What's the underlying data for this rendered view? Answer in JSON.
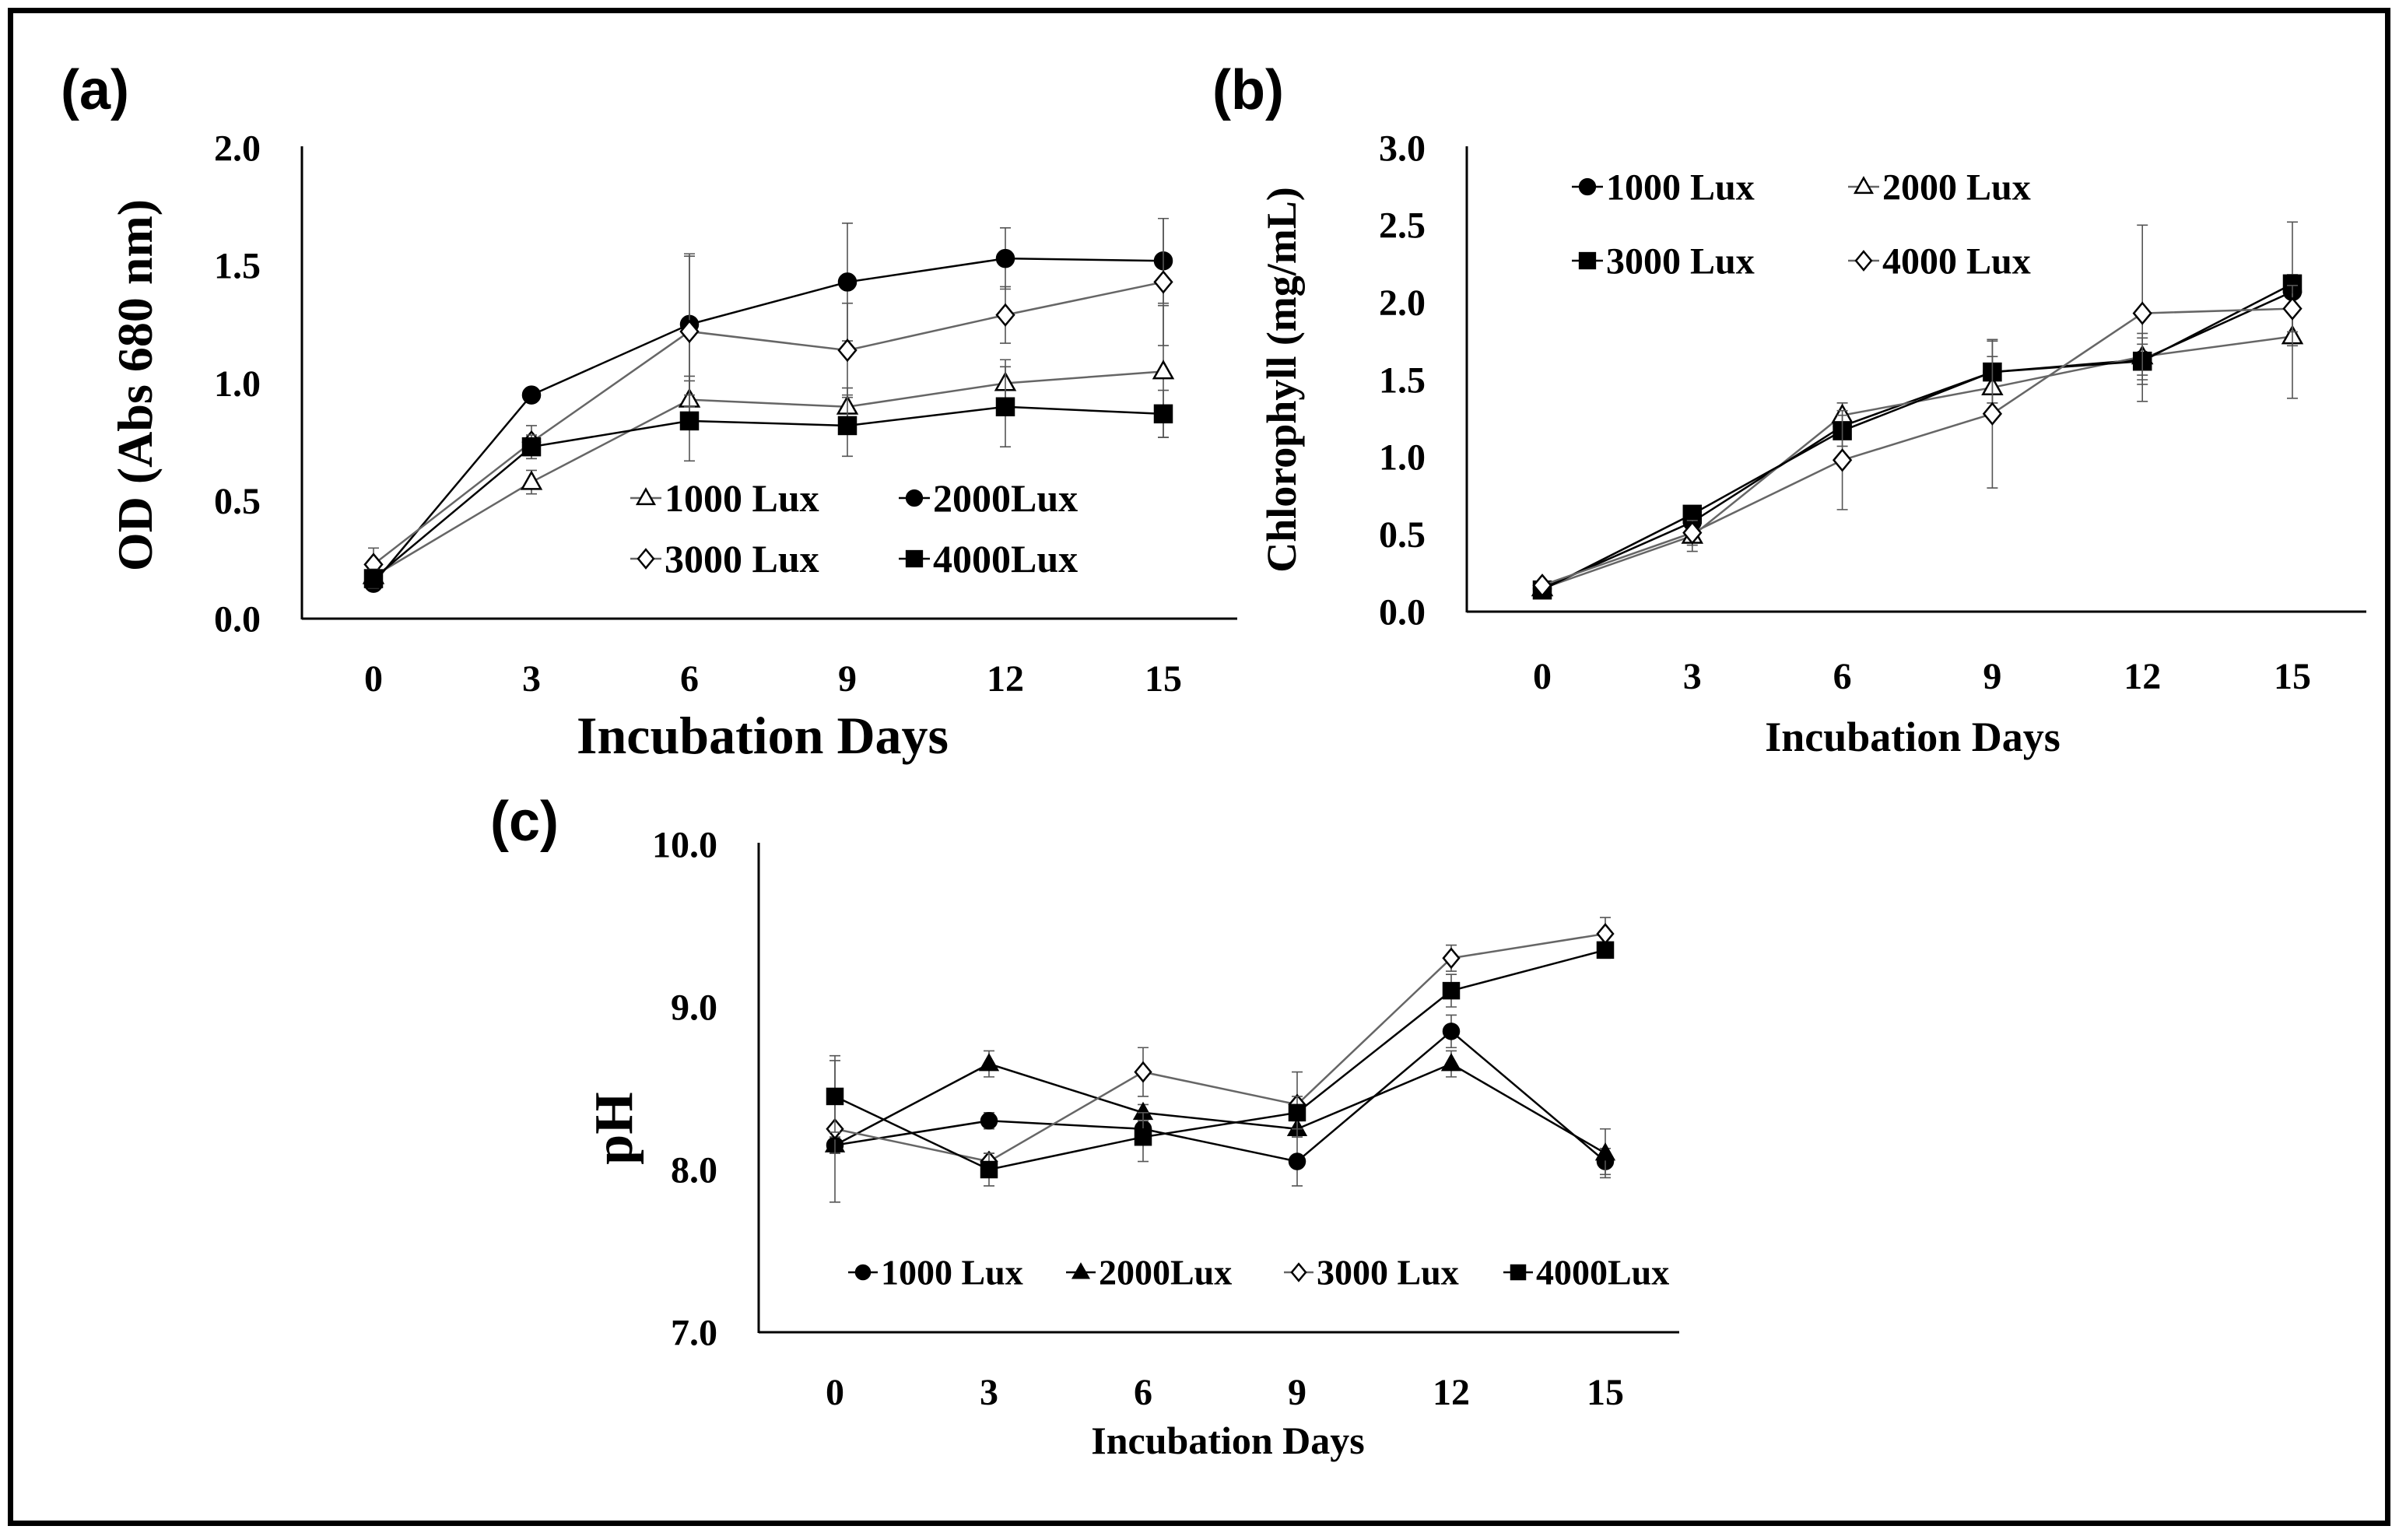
{
  "chart_data": [
    {
      "type": "line",
      "panel_label": "(a)",
      "title": "",
      "xlabel": "Incubation Days",
      "ylabel": "OD (Abs 680 nm)",
      "x": [
        0,
        3,
        6,
        9,
        12,
        15
      ],
      "x_tick_labels": [
        "0",
        "3",
        "6",
        "9",
        "12",
        "15"
      ],
      "ylim": [
        0,
        2
      ],
      "y_ticks": [
        0,
        0.5,
        1,
        1.5,
        2
      ],
      "y_tick_labels": [
        "0.0",
        "0.5",
        "1.0",
        "1.5",
        "2.0"
      ],
      "legend_position": "center-right",
      "series": [
        {
          "name": "1000 Lux",
          "marker": "triangle-open",
          "values": [
            0.18,
            0.58,
            0.93,
            0.9,
            1.0,
            1.05
          ],
          "errors": [
            0.05,
            0.05,
            0.1,
            0.08,
            0.1,
            0.28
          ]
        },
        {
          "name": "2000Lux",
          "marker": "circle-filled",
          "values": [
            0.15,
            0.95,
            1.25,
            1.43,
            1.53,
            1.52
          ],
          "errors": [
            0.03,
            0.03,
            0.3,
            0.25,
            0.13,
            0.18
          ]
        },
        {
          "name": "3000 Lux",
          "marker": "diamond-open",
          "values": [
            0.23,
            0.75,
            1.22,
            1.14,
            1.29,
            1.43
          ],
          "errors": [
            0.07,
            0.07,
            0.32,
            0.2,
            0.12,
            0.27
          ]
        },
        {
          "name": "4000Lux",
          "marker": "square-filled",
          "values": [
            0.17,
            0.73,
            0.84,
            0.82,
            0.9,
            0.87
          ],
          "errors": [
            0.04,
            0.05,
            0.17,
            0.13,
            0.17,
            0.1
          ]
        }
      ]
    },
    {
      "type": "line",
      "panel_label": "(b)",
      "title": "",
      "xlabel": "Incubation Days",
      "ylabel": "Chlorophyll  (mg/mL)",
      "x": [
        0,
        3,
        6,
        9,
        12,
        15
      ],
      "x_tick_labels": [
        "0",
        "3",
        "6",
        "9",
        "12",
        "15"
      ],
      "ylim": [
        0,
        3
      ],
      "y_ticks": [
        0,
        0.5,
        1,
        1.5,
        2,
        2.5,
        3
      ],
      "y_tick_labels": [
        "0.0",
        "0.5",
        "1.0",
        "1.5",
        "2.0",
        "2.5",
        "3.0"
      ],
      "legend_position": "top-left",
      "series": [
        {
          "name": "1000 Lux",
          "marker": "circle-filled",
          "values": [
            0.15,
            0.58,
            1.2,
            1.55,
            1.63,
            2.07
          ],
          "errors": [
            0.03,
            0.05,
            0.08,
            0.1,
            0.1,
            0.1
          ]
        },
        {
          "name": "2000 Lux",
          "marker": "triangle-open",
          "values": [
            0.15,
            0.49,
            1.27,
            1.45,
            1.65,
            1.78
          ],
          "errors": [
            0.03,
            0.1,
            0.08,
            0.1,
            0.15,
            0.4
          ]
        },
        {
          "name": "3000 Lux",
          "marker": "square-filled",
          "values": [
            0.14,
            0.63,
            1.17,
            1.55,
            1.62,
            2.12
          ],
          "errors": [
            0.03,
            0.05,
            0.1,
            0.2,
            0.15,
            0.4
          ]
        },
        {
          "name": "4000 Lux",
          "marker": "diamond-open",
          "values": [
            0.17,
            0.51,
            0.98,
            1.28,
            1.93,
            1.96
          ],
          "errors": [
            0.03,
            0.08,
            0.32,
            0.48,
            0.57,
            0.15
          ]
        }
      ]
    },
    {
      "type": "line",
      "panel_label": "(c)",
      "title": "",
      "xlabel": "Incubation Days",
      "ylabel": "pH",
      "x": [
        0,
        3,
        6,
        9,
        12,
        15
      ],
      "x_tick_labels": [
        "0",
        "3",
        "6",
        "9",
        "12",
        "15"
      ],
      "ylim": [
        7,
        10
      ],
      "y_ticks": [
        7,
        8,
        9,
        10
      ],
      "y_tick_labels": [
        "7.0",
        "8.0",
        "9.0",
        "10.0"
      ],
      "legend_position": "bottom",
      "series": [
        {
          "name": "1000 Lux",
          "marker": "circle-filled",
          "values": [
            8.15,
            8.3,
            8.25,
            8.05,
            8.85,
            8.05
          ],
          "errors": [
            0.05,
            0.05,
            0.05,
            0.15,
            0.1,
            0.08
          ]
        },
        {
          "name": "2000Lux",
          "marker": "triangle-filled",
          "values": [
            8.15,
            8.65,
            8.35,
            8.25,
            8.65,
            8.1
          ],
          "errors": [
            0.05,
            0.08,
            0.05,
            0.05,
            0.08,
            0.15
          ]
        },
        {
          "name": "3000 Lux",
          "marker": "diamond-open",
          "values": [
            8.25,
            8.05,
            8.6,
            8.4,
            9.3,
            9.45
          ],
          "errors": [
            0.45,
            0.05,
            0.15,
            0.2,
            0.08,
            0.1
          ]
        },
        {
          "name": "4000Lux",
          "marker": "square-filled",
          "values": [
            8.45,
            8.0,
            8.2,
            8.35,
            9.1,
            9.35
          ],
          "errors": [
            0.22,
            0.1,
            0.15,
            0.1,
            0.1,
            0.05
          ]
        }
      ]
    }
  ]
}
